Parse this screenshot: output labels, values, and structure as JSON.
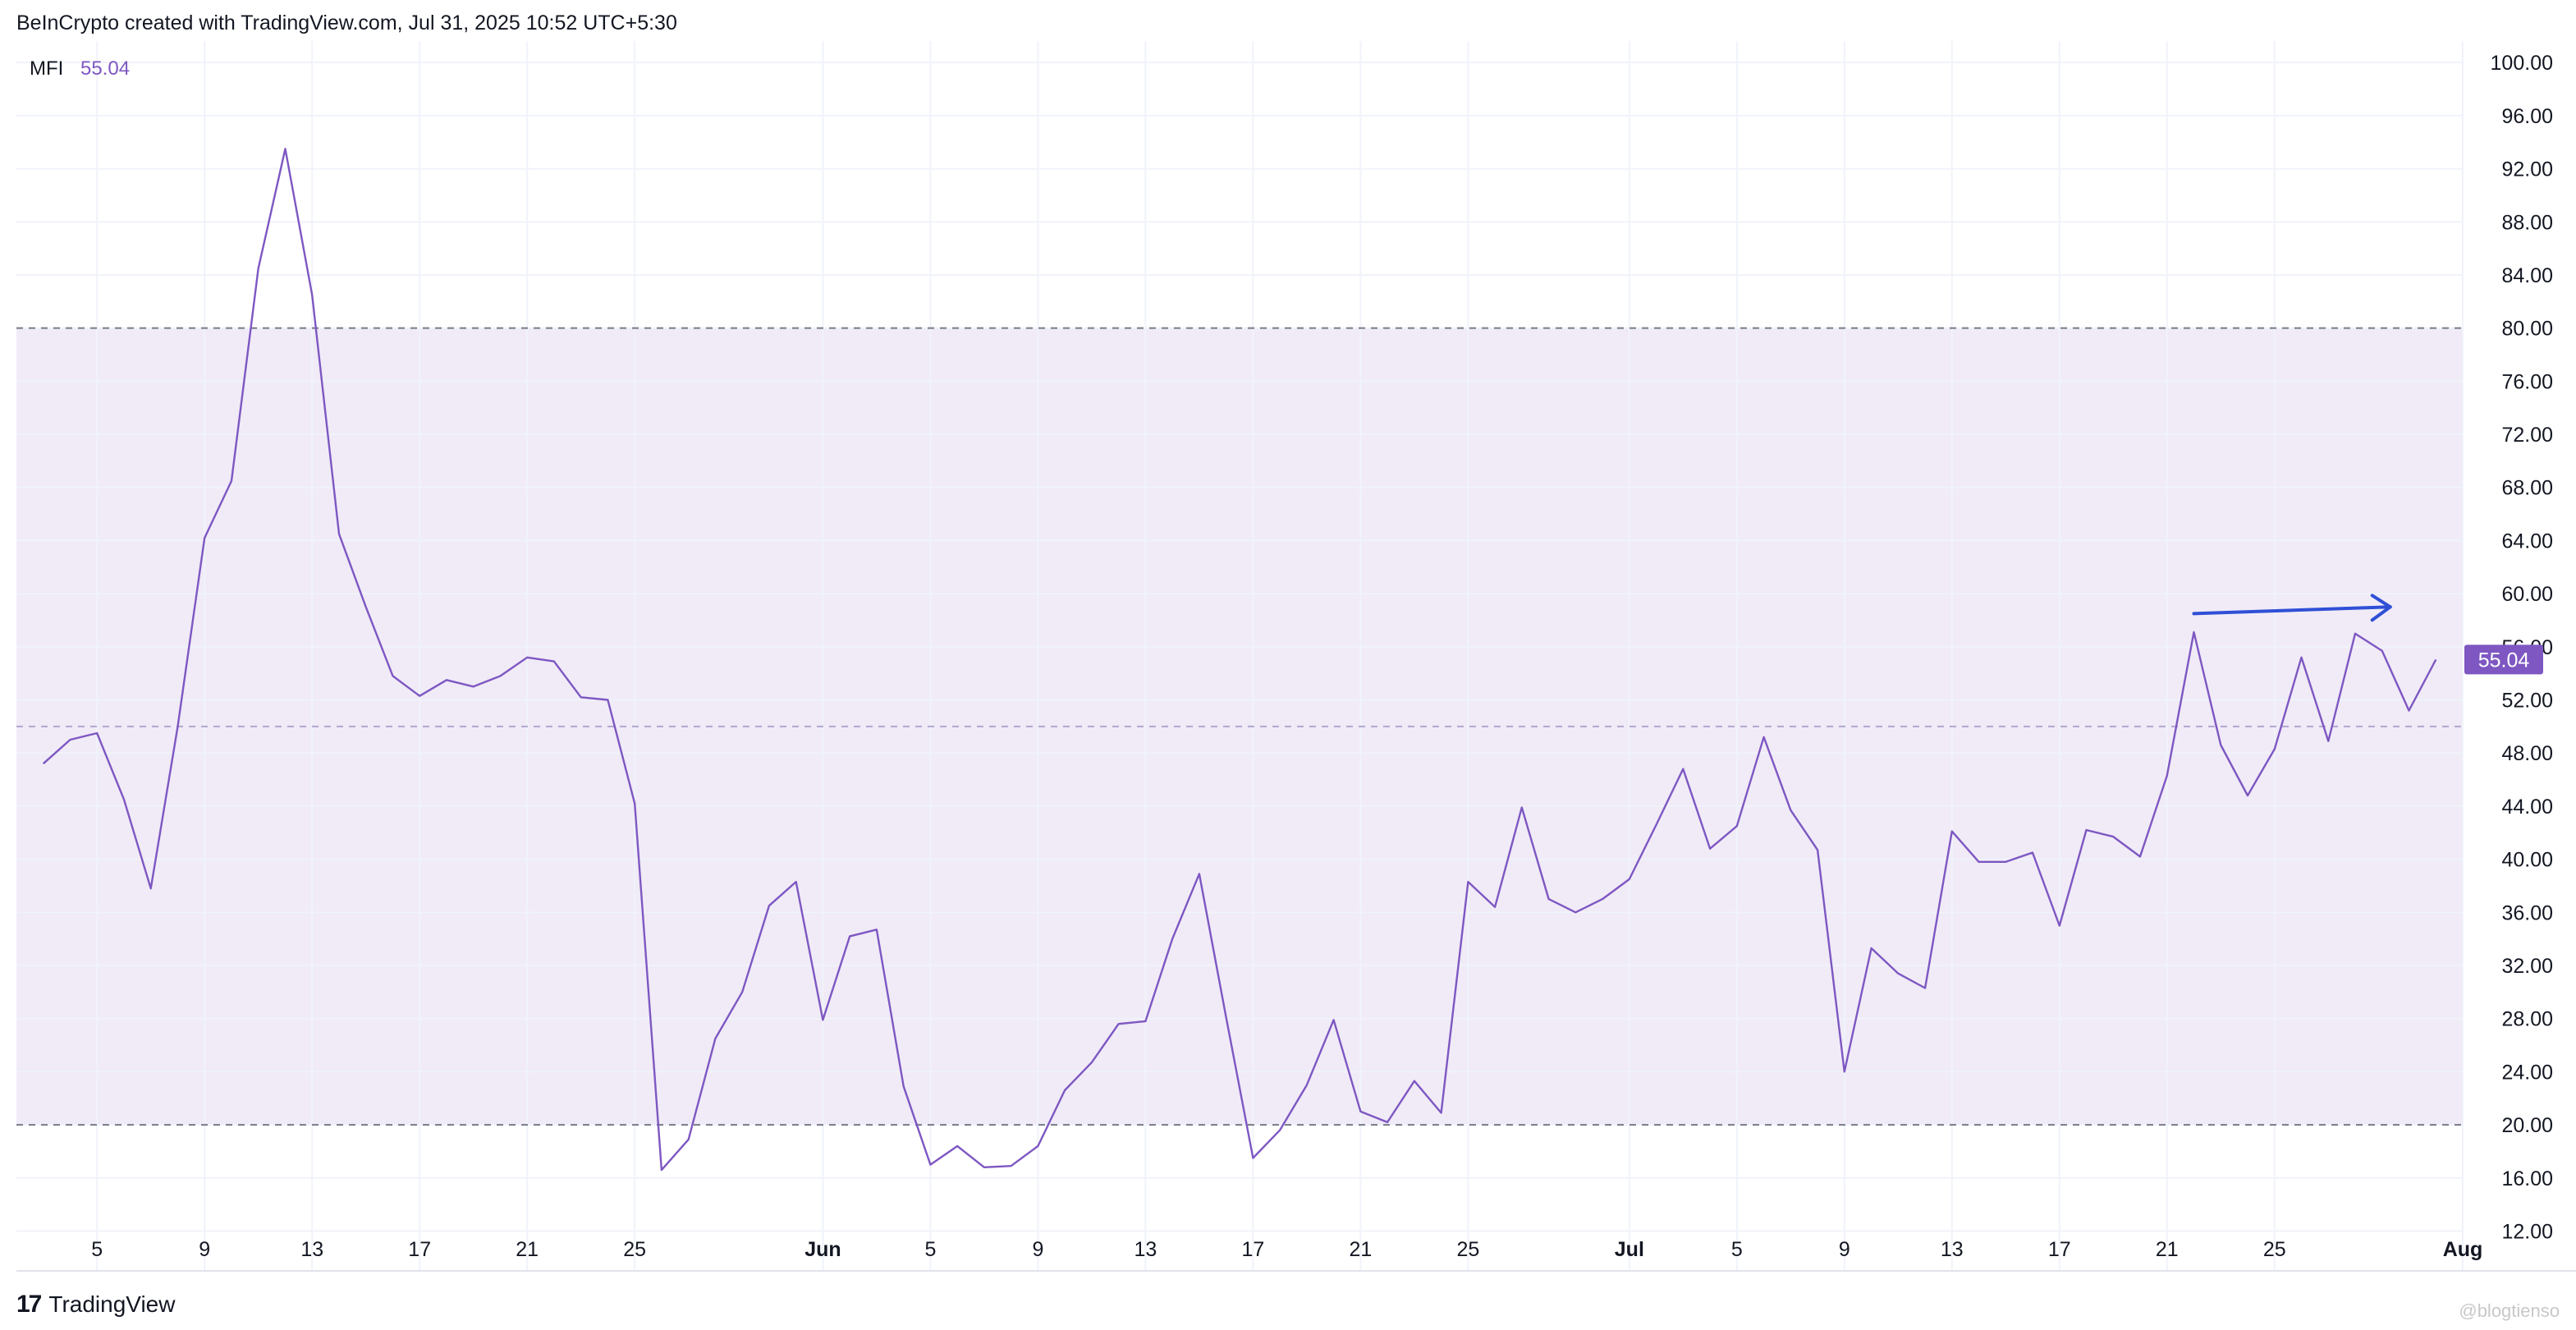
{
  "header": {
    "attribution": "BeInCrypto created with TradingView.com, Jul 31, 2025 10:52 UTC+5:30"
  },
  "legend": {
    "name": "MFI",
    "value": "55.04"
  },
  "footer": {
    "brand": "TradingView",
    "logo": "17",
    "watermark": "@blogtienso"
  },
  "colors": {
    "line": "#7e57c2",
    "band": "#ede7f6",
    "arrow": "#2f4fd6",
    "grid": "#f0f3fa",
    "dash": "#787b86"
  },
  "chart_data": {
    "type": "line",
    "series": [
      {
        "name": "MFI",
        "x": [
          "May 3",
          "May 4",
          "May 5",
          "May 6",
          "May 7",
          "May 8",
          "May 9",
          "May 10",
          "May 11",
          "May 12",
          "May 13",
          "May 14",
          "May 15",
          "May 16",
          "May 17",
          "May 18",
          "May 19",
          "May 20",
          "May 21",
          "May 22",
          "May 23",
          "May 24",
          "May 25",
          "May 26",
          "May 27",
          "May 28",
          "May 29",
          "May 30",
          "May 31",
          "Jun 1",
          "Jun 2",
          "Jun 3",
          "Jun 4",
          "Jun 5",
          "Jun 6",
          "Jun 7",
          "Jun 8",
          "Jun 9",
          "Jun 10",
          "Jun 11",
          "Jun 12",
          "Jun 13",
          "Jun 14",
          "Jun 15",
          "Jun 16",
          "Jun 17",
          "Jun 18",
          "Jun 19",
          "Jun 20",
          "Jun 21",
          "Jun 22",
          "Jun 23",
          "Jun 24",
          "Jun 25",
          "Jun 26",
          "Jun 27",
          "Jun 28",
          "Jun 29",
          "Jun 30",
          "Jul 1",
          "Jul 2",
          "Jul 3",
          "Jul 4",
          "Jul 5",
          "Jul 6",
          "Jul 7",
          "Jul 8",
          "Jul 9",
          "Jul 10",
          "Jul 11",
          "Jul 12",
          "Jul 13",
          "Jul 14",
          "Jul 15",
          "Jul 16",
          "Jul 17",
          "Jul 18",
          "Jul 19",
          "Jul 20",
          "Jul 21",
          "Jul 22",
          "Jul 23",
          "Jul 24",
          "Jul 25",
          "Jul 26",
          "Jul 27",
          "Jul 28",
          "Jul 29",
          "Jul 30",
          "Jul 31"
        ],
        "values": [
          47.2,
          49.0,
          49.5,
          44.5,
          37.8,
          50.0,
          64.2,
          68.5,
          84.5,
          93.5,
          82.5,
          64.5,
          59.0,
          53.8,
          52.3,
          53.5,
          53.0,
          53.8,
          55.2,
          54.9,
          52.2,
          52.0,
          44.2,
          16.6,
          18.9,
          26.5,
          30.0,
          36.5,
          38.3,
          27.9,
          34.2,
          34.7,
          22.9,
          17.0,
          18.4,
          16.8,
          16.9,
          18.4,
          22.6,
          24.7,
          27.6,
          27.8,
          34.0,
          38.9,
          28.1,
          17.5,
          19.6,
          23.0,
          27.9,
          21.0,
          20.2,
          23.3,
          20.9,
          38.3,
          36.4,
          43.9,
          37.0,
          36.0,
          37.0,
          38.5,
          42.6,
          46.8,
          40.8,
          42.5,
          49.2,
          43.7,
          40.7,
          24.0,
          33.3,
          31.4,
          30.3,
          42.1,
          39.8,
          39.8,
          40.5,
          35.0,
          42.2,
          41.7,
          40.2,
          46.3,
          57.1,
          48.6,
          44.8,
          48.3,
          55.2,
          48.9,
          57.0,
          55.7,
          51.2,
          55.04
        ]
      }
    ],
    "ylim": [
      9,
      101
    ],
    "yticks": [
      "100.00",
      "96.00",
      "92.00",
      "88.00",
      "84.00",
      "80.00",
      "76.00",
      "72.00",
      "68.00",
      "64.00",
      "60.00",
      "56.00",
      "52.00",
      "48.00",
      "44.00",
      "40.00",
      "36.00",
      "32.00",
      "28.00",
      "24.00",
      "20.00",
      "16.00",
      "12.00"
    ],
    "xticks": [
      {
        "label": "5",
        "date": "May 5"
      },
      {
        "label": "9",
        "date": "May 9"
      },
      {
        "label": "13",
        "date": "May 13"
      },
      {
        "label": "17",
        "date": "May 17"
      },
      {
        "label": "21",
        "date": "May 21"
      },
      {
        "label": "25",
        "date": "May 25"
      },
      {
        "label": "Jun",
        "date": "Jun 1",
        "bold": true
      },
      {
        "label": "5",
        "date": "Jun 5"
      },
      {
        "label": "9",
        "date": "Jun 9"
      },
      {
        "label": "13",
        "date": "Jun 13"
      },
      {
        "label": "17",
        "date": "Jun 17"
      },
      {
        "label": "21",
        "date": "Jun 21"
      },
      {
        "label": "25",
        "date": "Jun 25"
      },
      {
        "label": "Jul",
        "date": "Jul 1",
        "bold": true
      },
      {
        "label": "5",
        "date": "Jul 5"
      },
      {
        "label": "9",
        "date": "Jul 9"
      },
      {
        "label": "13",
        "date": "Jul 13"
      },
      {
        "label": "17",
        "date": "Jul 17"
      },
      {
        "label": "21",
        "date": "Jul 21"
      },
      {
        "label": "25",
        "date": "Jul 25"
      },
      {
        "label": "Aug",
        "date": "Aug 1",
        "bold": true
      }
    ],
    "x_range": [
      "May 2",
      "Aug 1"
    ],
    "bands": {
      "upper": 80,
      "middle": 50,
      "lower": 20
    },
    "last_value_label": "55.04",
    "annotation": {
      "type": "arrow",
      "from": {
        "x": "Jul 22",
        "y": 58.5
      },
      "to": {
        "x": "Jul 29",
        "y": 59.0
      }
    },
    "grid": true
  }
}
